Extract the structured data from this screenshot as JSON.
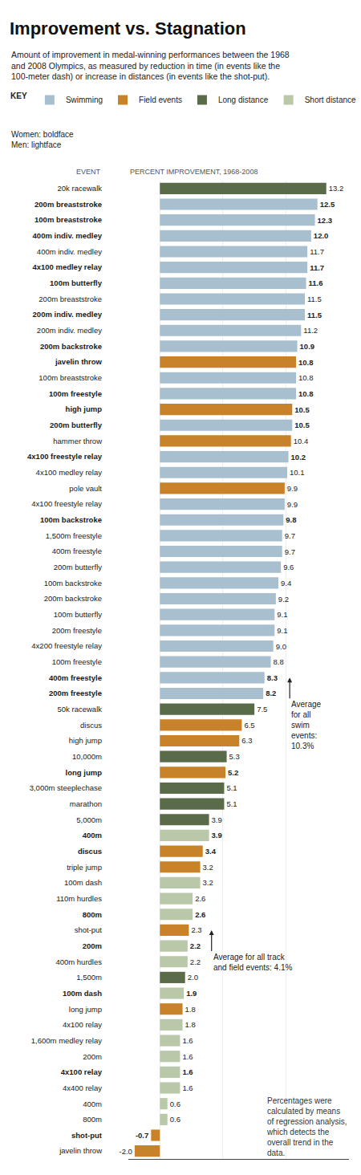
{
  "chart_data": {
    "type": "bar",
    "orientation": "horizontal",
    "title": "Improvement vs. Stagnation",
    "subtitle": "Amount of improvement in medal-winning performances between the 1968\nand 2008 Olympics, as measured by reduction in time (in events like the\n100-meter dash) or increase in distances (in events like the shot-put).",
    "xlabel": "PERCENT IMPROVEMENT, 1968-2008",
    "ylabel": "EVENT",
    "legend_title": "KEY",
    "legend": "top left",
    "note": "Women: boldface\nMen: lightface",
    "footnote": "Percentages were\ncalculated by means\nof regression analysis,\nwhich detects the\noverall trend in the\ndata.",
    "annotations": [
      {
        "text": "Average\nfor all\nswim\nevents:\n10.3%",
        "x": 10.3
      },
      {
        "text": "Average for all track\nand field events: 4.1%",
        "x": 4.1
      }
    ],
    "xlim": [
      -2.5,
      15.0
    ],
    "xticks": [
      0,
      5,
      10,
      15
    ],
    "grid": true,
    "tick_labels": "y",
    "data_labels": true,
    "categories": [
      "20k racewalk",
      "200m breaststroke",
      "100m breaststroke",
      "400m indiv. medley",
      "400m indiv. medley",
      "4x100 medley relay",
      "100m butterfly",
      "200m breaststroke",
      "200m indiv. medley",
      "200m indiv. medley",
      "200m backstroke",
      "javelin throw",
      "100m breaststroke",
      "100m freestyle",
      "high jump",
      "200m butterfly",
      "hammer throw",
      "4x100 freestyle relay",
      "4x100 medley relay",
      "pole vault",
      "4x100 freestyle relay",
      "100m backstroke",
      "1,500m freestyle",
      "400m freestyle",
      "200m butterfly",
      "100m backstroke",
      "200m backstroke",
      "100m butterfly",
      "200m freestyle",
      "4x200 freestyle relay",
      "100m freestyle",
      "400m freestyle",
      "200m freestyle",
      "50k racewalk",
      "discus",
      "high jump",
      "10,000m",
      "long jump",
      "3,000m steeplechase",
      "marathon",
      "5,000m",
      "400m",
      "discus",
      "triple jump",
      "100m dash",
      "110m hurdles",
      "800m",
      "shot-put",
      "200m",
      "400m hurdles",
      "1,500m",
      "100m dash",
      "long jump",
      "4x100 relay",
      "1,600m medley relay",
      "200m",
      "4x100 relay",
      "4x400 relay",
      "400m",
      "800m",
      "shot-put",
      "javelin throw"
    ],
    "bold": [
      false,
      true,
      true,
      true,
      false,
      true,
      true,
      false,
      true,
      false,
      true,
      true,
      false,
      true,
      true,
      true,
      false,
      true,
      false,
      false,
      false,
      true,
      false,
      false,
      false,
      false,
      false,
      false,
      false,
      false,
      false,
      true,
      true,
      false,
      false,
      false,
      false,
      true,
      false,
      false,
      false,
      true,
      true,
      false,
      false,
      false,
      true,
      false,
      true,
      false,
      false,
      true,
      false,
      false,
      false,
      false,
      true,
      false,
      false,
      false,
      true,
      false
    ],
    "series": [
      {
        "name": "Swimming",
        "color": "#a8bfd0",
        "values": [
          null,
          12.5,
          12.3,
          12.0,
          11.7,
          11.7,
          11.6,
          11.5,
          11.5,
          11.2,
          10.9,
          null,
          10.8,
          10.8,
          null,
          10.5,
          null,
          10.2,
          10.1,
          null,
          9.9,
          9.8,
          9.7,
          9.7,
          9.6,
          9.4,
          9.2,
          9.1,
          9.1,
          9.0,
          8.8,
          8.3,
          8.2,
          null,
          null,
          null,
          null,
          null,
          null,
          null,
          null,
          null,
          null,
          null,
          null,
          null,
          null,
          null,
          null,
          null,
          null,
          null,
          null,
          null,
          null,
          null,
          null,
          null,
          null,
          null,
          null,
          null
        ],
        "value_labels": [
          null,
          "12.5",
          "12.3",
          "12.0",
          "11.7",
          "11.7",
          "11.6",
          "11.5",
          "11.5",
          "11.2",
          "10.9",
          null,
          "10.8",
          "10.8",
          null,
          "10.5",
          null,
          "10.2",
          "10.1",
          null,
          "9.9",
          "9.8",
          "9.7",
          "9.7",
          "9.6",
          "9.4",
          "9.2",
          "9.1",
          "9.1",
          "9.0",
          "8.8",
          "8.3",
          "8.2",
          null,
          null,
          null,
          null,
          null,
          null,
          null,
          null,
          null,
          null,
          null,
          null,
          null,
          null,
          null,
          null,
          null,
          null,
          null,
          null,
          null,
          null,
          null,
          null,
          null,
          null,
          null,
          null,
          null
        ]
      },
      {
        "name": "Field events",
        "color": "#c8832a",
        "values": [
          null,
          null,
          null,
          null,
          null,
          null,
          null,
          null,
          null,
          null,
          null,
          10.8,
          null,
          null,
          10.5,
          null,
          10.4,
          null,
          null,
          9.9,
          null,
          null,
          null,
          null,
          null,
          null,
          null,
          null,
          null,
          null,
          null,
          null,
          null,
          null,
          6.5,
          6.3,
          null,
          5.2,
          null,
          null,
          null,
          null,
          3.4,
          3.2,
          null,
          null,
          null,
          2.3,
          null,
          null,
          null,
          null,
          1.8,
          null,
          null,
          null,
          null,
          null,
          null,
          null,
          -0.7,
          -2.0
        ],
        "value_labels": [
          null,
          null,
          null,
          null,
          null,
          null,
          null,
          null,
          null,
          null,
          null,
          "10.8",
          null,
          null,
          "10.5",
          null,
          "10.4",
          null,
          null,
          "9.9",
          null,
          null,
          null,
          null,
          null,
          null,
          null,
          null,
          null,
          null,
          null,
          null,
          null,
          null,
          "6.5",
          "6.3",
          null,
          "5.2",
          null,
          null,
          null,
          null,
          "3.4",
          "3.2",
          null,
          null,
          null,
          "2.3",
          null,
          null,
          null,
          null,
          "1.8",
          null,
          null,
          null,
          null,
          null,
          null,
          null,
          "-0.7",
          "-2.0"
        ]
      },
      {
        "name": "Long distance",
        "color": "#5a6b4a",
        "values": [
          13.2,
          null,
          null,
          null,
          null,
          null,
          null,
          null,
          null,
          null,
          null,
          null,
          null,
          null,
          null,
          null,
          null,
          null,
          null,
          null,
          null,
          null,
          null,
          null,
          null,
          null,
          null,
          null,
          null,
          null,
          null,
          null,
          null,
          7.5,
          null,
          null,
          5.3,
          null,
          5.1,
          5.1,
          3.9,
          null,
          null,
          null,
          null,
          null,
          null,
          null,
          null,
          null,
          2.0,
          null,
          null,
          null,
          null,
          null,
          null,
          null,
          null,
          null,
          null,
          null
        ],
        "value_labels": [
          "13.2",
          null,
          null,
          null,
          null,
          null,
          null,
          null,
          null,
          null,
          null,
          null,
          null,
          null,
          null,
          null,
          null,
          null,
          null,
          null,
          null,
          null,
          null,
          null,
          null,
          null,
          null,
          null,
          null,
          null,
          null,
          null,
          null,
          "7.5",
          null,
          null,
          "5.3",
          null,
          "5.1",
          "5.1",
          "3.9",
          null,
          null,
          null,
          null,
          null,
          null,
          null,
          null,
          null,
          "2.0",
          null,
          null,
          null,
          null,
          null,
          null,
          null,
          null,
          null,
          null,
          null
        ]
      },
      {
        "name": "Short distance",
        "color": "#b8c8a8",
        "values": [
          null,
          null,
          null,
          null,
          null,
          null,
          null,
          null,
          null,
          null,
          null,
          null,
          null,
          null,
          null,
          null,
          null,
          null,
          null,
          null,
          null,
          null,
          null,
          null,
          null,
          null,
          null,
          null,
          null,
          null,
          null,
          null,
          null,
          null,
          null,
          null,
          null,
          null,
          null,
          null,
          null,
          3.9,
          null,
          null,
          3.2,
          2.6,
          2.6,
          null,
          2.2,
          2.2,
          null,
          1.9,
          null,
          1.8,
          1.6,
          1.6,
          1.6,
          1.6,
          0.6,
          0.6,
          null,
          null
        ],
        "value_labels": [
          null,
          null,
          null,
          null,
          null,
          null,
          null,
          null,
          null,
          null,
          null,
          null,
          null,
          null,
          null,
          null,
          null,
          null,
          null,
          null,
          null,
          null,
          null,
          null,
          null,
          null,
          null,
          null,
          null,
          null,
          null,
          null,
          null,
          null,
          null,
          null,
          null,
          null,
          null,
          null,
          null,
          "3.9",
          null,
          null,
          "3.2",
          "2.6",
          "2.6",
          null,
          "2.2",
          "2.2",
          null,
          "1.9",
          null,
          "1.8",
          "1.6",
          "1.6",
          "1.6",
          "1.6",
          "0.6",
          "0.6",
          null,
          null
        ]
      }
    ]
  }
}
